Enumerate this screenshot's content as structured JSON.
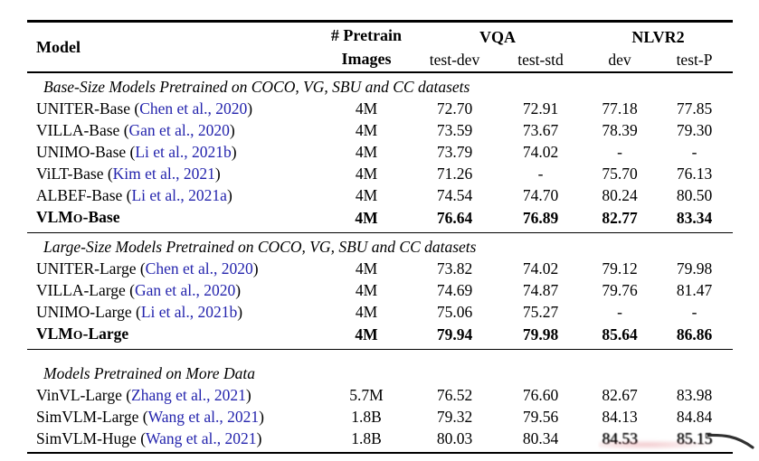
{
  "colors": {
    "citation_link": "#2424ad",
    "text": "#000000",
    "background": "#ffffff",
    "rule": "#000000"
  },
  "table": {
    "header": {
      "model": "Model",
      "pretrain": [
        "# Pretrain",
        "Images"
      ],
      "groups": [
        {
          "label": "VQA"
        },
        {
          "label": "NLVR2"
        }
      ],
      "subheaders": [
        "test-dev",
        "test-std",
        "dev",
        "test-P"
      ]
    },
    "sections": [
      {
        "title": "Base-Size Models Pretrained on COCO, VG, SBU and CC datasets",
        "rows": [
          {
            "model": [
              {
                "t": "UNITER-Base"
              }
            ],
            "cite": "Chen et al., 2020",
            "images": "4M",
            "values": [
              "72.70",
              "72.91",
              "77.18",
              "77.85"
            ],
            "bold": false
          },
          {
            "model": [
              {
                "t": "VILLA-Base"
              }
            ],
            "cite": "Gan et al., 2020",
            "images": "4M",
            "values": [
              "73.59",
              "73.67",
              "78.39",
              "79.30"
            ],
            "bold": false
          },
          {
            "model": [
              {
                "t": "UNIMO-Base"
              }
            ],
            "cite": "Li et al., 2021b",
            "images": "4M",
            "values": [
              "73.79",
              "74.02",
              "-",
              "-"
            ],
            "bold": false
          },
          {
            "model": [
              {
                "t": "ViLT-Base"
              }
            ],
            "cite": "Kim et al., 2021",
            "images": "4M",
            "values": [
              "71.26",
              "-",
              "75.70",
              "76.13"
            ],
            "bold": false
          },
          {
            "model": [
              {
                "t": "ALBEF-Base"
              }
            ],
            "cite": "Li et al., 2021a",
            "images": "4M",
            "values": [
              "74.54",
              "74.70",
              "80.24",
              "80.50"
            ],
            "bold": false
          },
          {
            "model": [
              {
                "t": "VLM"
              },
              {
                "t": "o",
                "sc": true
              },
              {
                "t": "-Base"
              }
            ],
            "cite": null,
            "images": "4M",
            "values": [
              "76.64",
              "76.89",
              "82.77",
              "83.34"
            ],
            "bold": true
          }
        ]
      },
      {
        "title": "Large-Size Models Pretrained on COCO, VG, SBU and CC datasets",
        "rows": [
          {
            "model": [
              {
                "t": "UNITER-Large"
              }
            ],
            "cite": "Chen et al., 2020",
            "images": "4M",
            "values": [
              "73.82",
              "74.02",
              "79.12",
              "79.98"
            ],
            "bold": false
          },
          {
            "model": [
              {
                "t": "VILLA-Large"
              }
            ],
            "cite": "Gan et al., 2020",
            "images": "4M",
            "values": [
              "74.69",
              "74.87",
              "79.76",
              "81.47"
            ],
            "bold": false
          },
          {
            "model": [
              {
                "t": "UNIMO-Large"
              }
            ],
            "cite": "Li et al., 2021b",
            "images": "4M",
            "values": [
              "75.06",
              "75.27",
              "-",
              "-"
            ],
            "bold": false
          },
          {
            "model": [
              {
                "t": "VLM"
              },
              {
                "t": "o",
                "sc": true
              },
              {
                "t": "-Large"
              }
            ],
            "cite": null,
            "images": "4M",
            "values": [
              "79.94",
              "79.98",
              "85.64",
              "86.86"
            ],
            "bold": true
          }
        ]
      },
      {
        "title": "Models Pretrained on More Data",
        "extra_top_gap": true,
        "rows": [
          {
            "model": [
              {
                "t": "VinVL-Large"
              }
            ],
            "cite": "Zhang et al., 2021",
            "images": "5.7M",
            "values": [
              "76.52",
              "76.60",
              "82.67",
              "83.98"
            ],
            "bold": false
          },
          {
            "model": [
              {
                "t": "SimVLM-Large"
              }
            ],
            "cite": "Wang et al., 2021",
            "images": "1.8B",
            "values": [
              "79.32",
              "79.56",
              "84.13",
              "84.84"
            ],
            "bold": false
          },
          {
            "model": [
              {
                "t": "SimVLM-Huge"
              }
            ],
            "cite": "Wang et al., 2021",
            "images": "1.8B",
            "values": [
              "80.03",
              "80.34",
              "84.53",
              "85.15"
            ],
            "bold": false,
            "artifact_cells": [
              2,
              3
            ]
          }
        ]
      }
    ]
  }
}
